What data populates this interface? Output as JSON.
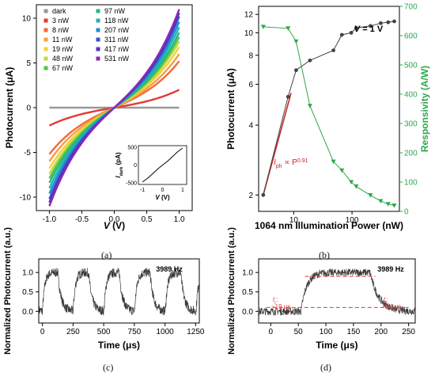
{
  "chart_data": [
    {
      "panel": "(a)",
      "type": "line",
      "xlabel_sym": "V",
      "xlabel_unit": " (V)",
      "ylabel": "Photocurrent (μA)",
      "xlim": [
        -1.2,
        1.2
      ],
      "ylim": [
        -11.5,
        11.5
      ],
      "xticks": [
        "-1.0",
        "-0.5",
        "0.0",
        "0.5",
        "1.0"
      ],
      "yticks": [
        "-10",
        "-5",
        "0",
        "5",
        "10"
      ],
      "series": [
        {
          "name": "dark",
          "color": "#999999",
          "slope": 0.0
        },
        {
          "name": "3 nW",
          "color": "#e53935",
          "slope": 2.0
        },
        {
          "name": "8 nW",
          "color": "#f26b3a",
          "slope": 5.2
        },
        {
          "name": "11 nW",
          "color": "#f59e42",
          "slope": 6.0
        },
        {
          "name": "19 nW",
          "color": "#f4d03f",
          "slope": 6.8
        },
        {
          "name": "48 nW",
          "color": "#c5d93c",
          "slope": 7.4
        },
        {
          "name": "67 nW",
          "color": "#52c54b",
          "slope": 7.9
        },
        {
          "name": "97 nW",
          "color": "#26b585",
          "slope": 8.4
        },
        {
          "name": "118 nW",
          "color": "#22b6b0",
          "slope": 9.0
        },
        {
          "name": "207 nW",
          "color": "#1e8fd0",
          "slope": 9.6
        },
        {
          "name": "311 nW",
          "color": "#3753c8",
          "slope": 10.2
        },
        {
          "name": "417 nW",
          "color": "#5a2fbf",
          "slope": 10.6
        },
        {
          "name": "531 nW",
          "color": "#8a28b8",
          "slope": 11.0
        }
      ],
      "inset": {
        "ylabel_sym": "I",
        "ylabel_sub": "dark",
        "ylabel_unit": " (pA)",
        "xlabel_sym": "V",
        "xlabel_unit": " (V)",
        "xticks": [
          "-1",
          "0",
          "1"
        ],
        "yticks": [
          "500",
          "0",
          "-500"
        ],
        "xlim": [
          -1.2,
          1.2
        ],
        "ylim": [
          -550,
          550
        ],
        "x": [
          -1.0,
          -0.75,
          -0.5,
          -0.25,
          0.0,
          0.25,
          0.5,
          0.75,
          1.0
        ],
        "y": [
          -480,
          -380,
          -250,
          -120,
          0,
          110,
          240,
          380,
          480
        ]
      }
    },
    {
      "panel": "(b)",
      "type": "line",
      "xlabel": "1064 nm Illumination Power (nW)",
      "ylabel_left": "Photocurrent (μA)",
      "ylabel_right": "Responsivity (A/W)",
      "xscale": "log",
      "xlim": [
        2.5,
        650
      ],
      "xticks": [
        "10",
        "100"
      ],
      "xtick_values": [
        10,
        100
      ],
      "ylim_left": [
        1.7,
        13
      ],
      "yticks_left": [
        "2",
        "4",
        "6",
        "8",
        "10",
        "12"
      ],
      "ytick_values_left": [
        2,
        4,
        6,
        8,
        10,
        12
      ],
      "ylim_right": [
        0,
        700
      ],
      "yticks_right": [
        "0",
        "100",
        "200",
        "300",
        "400",
        "500",
        "600",
        "700"
      ],
      "ytick_values_right": [
        0,
        100,
        200,
        300,
        400,
        500,
        600,
        700
      ],
      "annotation_fit": "I",
      "annotation_fit_sub": "ph",
      "annotation_fit_mid": " ∝ P",
      "annotation_fit_sup": "0.91",
      "annotation_bias": "V = 1 V",
      "photocurrent": {
        "color": "#444444",
        "x": [
          3,
          8,
          11,
          19,
          48,
          67,
          97,
          118,
          207,
          311,
          417,
          531
        ],
        "y": [
          2.0,
          5.3,
          6.9,
          7.6,
          8.4,
          9.8,
          10.0,
          10.5,
          10.7,
          11.0,
          11.1,
          11.2
        ]
      },
      "fit": {
        "color": "#c62828",
        "x": [
          3,
          9
        ],
        "y": [
          2.0,
          5.5
        ]
      },
      "responsivity": {
        "color": "#2aa84a",
        "x": [
          3,
          8,
          11,
          19,
          48,
          67,
          97,
          118,
          207,
          311,
          417,
          531
        ],
        "y": [
          630,
          625,
          580,
          360,
          170,
          140,
          100,
          85,
          55,
          35,
          25,
          20
        ]
      }
    },
    {
      "panel": "(c)",
      "type": "line",
      "xlabel": "Time (μs)",
      "ylabel": "Normalized Photocurrent (a.u.)",
      "annotation": "3989 Hz",
      "xlim": [
        -30,
        1280
      ],
      "ylim": [
        -0.3,
        1.35
      ],
      "xticks": [
        "0",
        "250",
        "500",
        "750",
        "1000",
        "1250"
      ],
      "xtick_values": [
        0,
        250,
        500,
        750,
        1000,
        1250
      ],
      "yticks": [
        "0.0",
        "0.5",
        "1.0"
      ],
      "ytick_values": [
        0.0,
        0.5,
        1.0
      ],
      "period_us": 250.7,
      "high_level": 1.0,
      "low_level": 0.0,
      "noise": 0.12
    },
    {
      "panel": "(d)",
      "type": "line",
      "xlabel": "Time (μs)",
      "ylabel": "Normalized Photocurrent (a.u.)",
      "annotation": "3989 Hz",
      "xlim": [
        -22,
        262
      ],
      "ylim": [
        -0.3,
        1.35
      ],
      "xticks": [
        "0",
        "50",
        "100",
        "150",
        "200",
        "250"
      ],
      "xtick_values": [
        0,
        50,
        100,
        150,
        200,
        250
      ],
      "yticks": [
        "0.0",
        "0.5",
        "1.0"
      ],
      "ytick_values": [
        0.0,
        0.5,
        1.0
      ],
      "rise_label": "t",
      "rise_sub": "r",
      "rise_value": "~19 μs",
      "fall_label": "t",
      "fall_sub": "f",
      "fall_value": "~34 μs",
      "levels_dashed": [
        0.1,
        0.9
      ],
      "noise": 0.1
    }
  ]
}
